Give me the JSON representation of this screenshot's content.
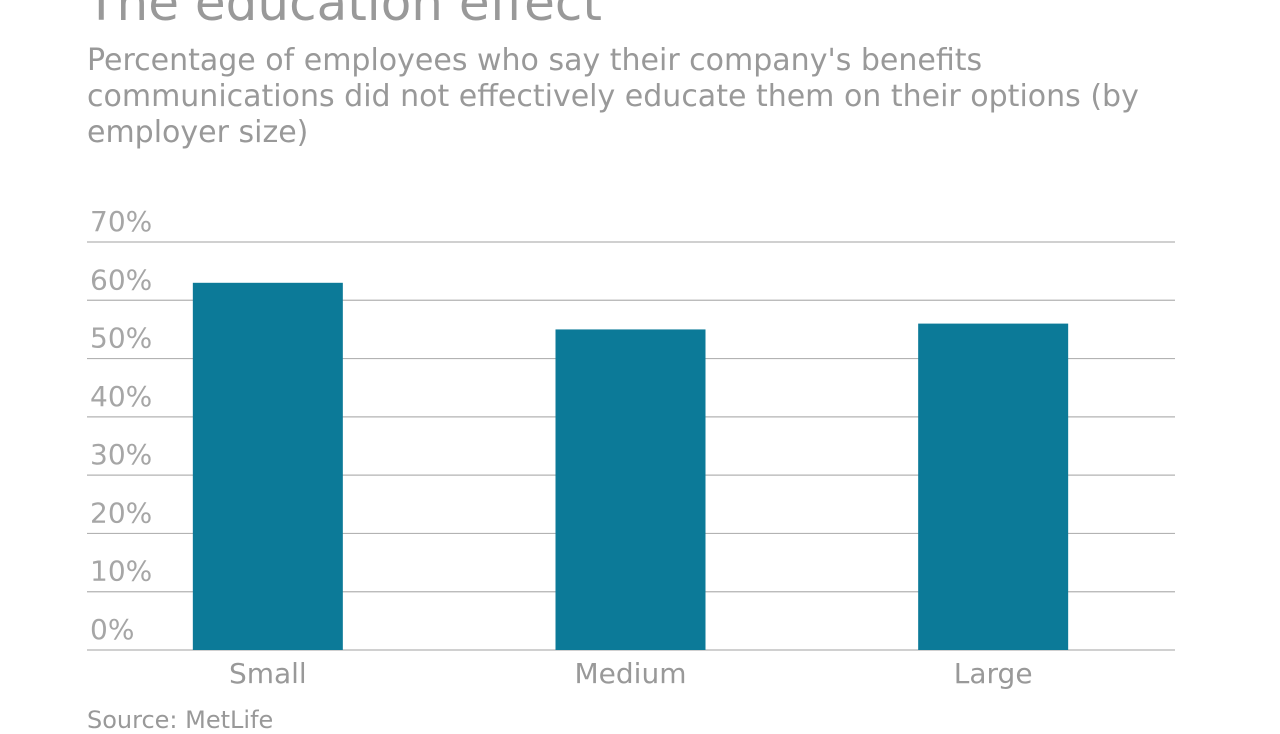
{
  "chart_data": {
    "type": "bar",
    "title": "The education effect",
    "subtitle": "Percentage of employees who say their company's benefits communications did not effectively educate them on their options (by employer size)",
    "source": "Source: MetLife",
    "categories": [
      "Small",
      "Medium",
      "Large"
    ],
    "values": [
      63,
      55,
      56
    ],
    "ylim": [
      0,
      70
    ],
    "yticks": [
      0,
      10,
      20,
      30,
      40,
      50,
      60,
      70
    ],
    "ytick_labels": [
      "0%",
      "10%",
      "20%",
      "30%",
      "40%",
      "50%",
      "60%",
      "70%"
    ],
    "grid": true,
    "bar_color": "#0c7a98",
    "grid_color": "#b3b3b3",
    "text_color": "#999999"
  }
}
